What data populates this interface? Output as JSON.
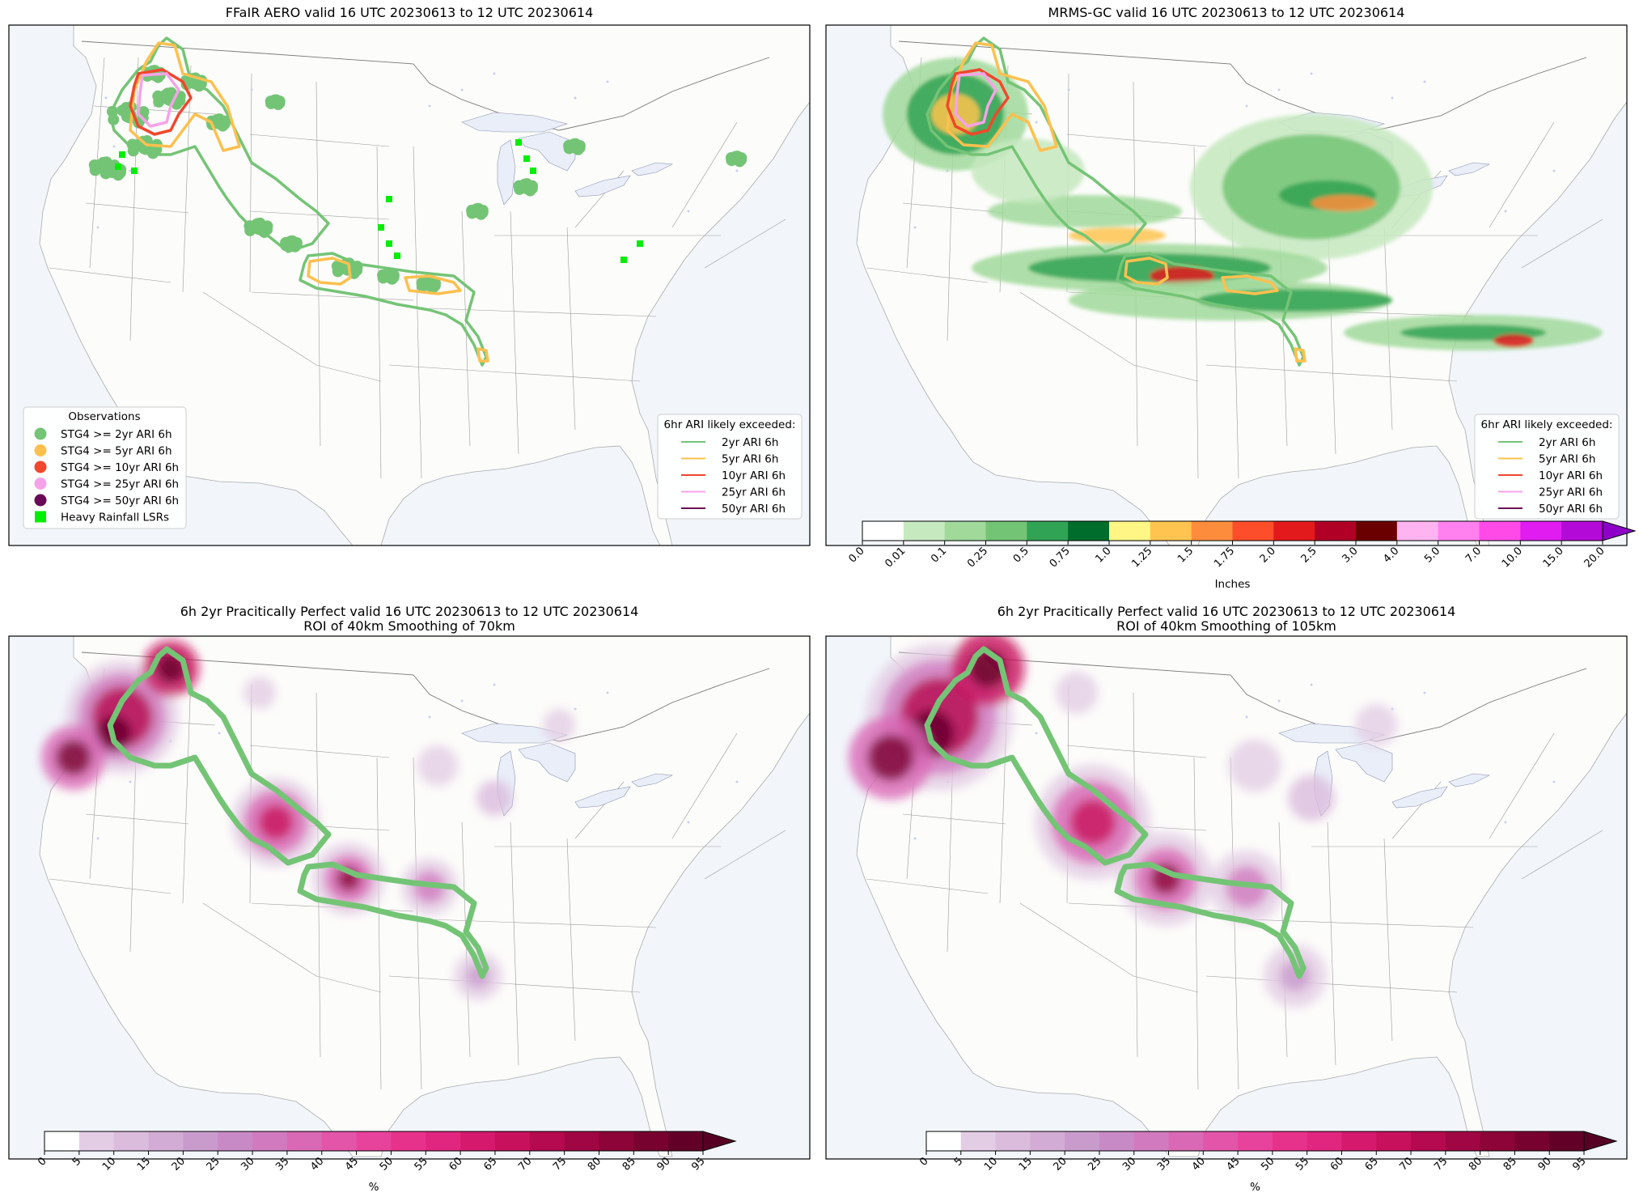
{
  "panels": [
    {
      "title_lines": [
        "FFaIR AERO valid 16 UTC 20230613 to 12 UTC 20230614"
      ]
    },
    {
      "title_lines": [
        "MRMS-GC valid 16 UTC 20230613 to 12 UTC 20230614"
      ]
    },
    {
      "title_lines": [
        "6h 2yr Pracitically Perfect valid 16 UTC 20230613 to 12 UTC 20230614",
        "ROI of 40km Smoothing of 70km"
      ]
    },
    {
      "title_lines": [
        "6h 2yr Pracitically Perfect valid 16 UTC 20230613 to 12 UTC 20230614",
        "ROI of 40km Smoothing of 105km"
      ]
    }
  ],
  "ari_legend": {
    "title": "6hr ARI likely exceeded:",
    "entries": [
      {
        "label": "2yr ARI 6h",
        "color": "#74c476"
      },
      {
        "label": "5yr ARI 6h",
        "color": "#fdc04e"
      },
      {
        "label": "10yr ARI 6h",
        "color": "#f1472c"
      },
      {
        "label": "25yr ARI 6h",
        "color": "#f5a3e8"
      },
      {
        "label": "50yr ARI 6h",
        "color": "#6a0a56"
      }
    ]
  },
  "obs_legend": {
    "title": "Observations",
    "entries": [
      {
        "label": "STG4 >= 2yr ARI 6h",
        "color": "#74c476",
        "marker": "circle"
      },
      {
        "label": "STG4 >= 5yr ARI 6h",
        "color": "#fdc04e",
        "marker": "circle"
      },
      {
        "label": "STG4 >= 10yr ARI 6h",
        "color": "#f1472c",
        "marker": "circle"
      },
      {
        "label": "STG4 >= 25yr ARI 6h",
        "color": "#f5a3e8",
        "marker": "circle"
      },
      {
        "label": "STG4 >= 50yr ARI 6h",
        "color": "#6a0a56",
        "marker": "circle"
      },
      {
        "label": "Heavy Rainfall LSRs",
        "color": "#00ee00",
        "marker": "square"
      }
    ]
  },
  "precip_colorbar": {
    "label": "Inches",
    "ticks": [
      "0.0",
      "0.01",
      "0.1",
      "0.25",
      "0.5",
      "0.75",
      "1.0",
      "1.25",
      "1.5",
      "1.75",
      "2.0",
      "2.5",
      "3.0",
      "4.0",
      "5.0",
      "7.0",
      "10.0",
      "15.0",
      "20.0"
    ],
    "colors": [
      "#ffffff",
      "#c7e9c0",
      "#a1d99b",
      "#74c476",
      "#31a354",
      "#006d2c",
      "#fff685",
      "#fec44f",
      "#fd8d3c",
      "#fc4e2a",
      "#e31a1c",
      "#b10026",
      "#6b0000",
      "#ffb3f0",
      "#ff80ee",
      "#ff4ae8",
      "#e01cf0",
      "#b40ad8"
    ],
    "extend_color": "#8c00c8"
  },
  "prob_colorbar": {
    "label": "%",
    "ticks": [
      "0",
      "5",
      "10",
      "15",
      "20",
      "25",
      "30",
      "35",
      "40",
      "45",
      "50",
      "55",
      "60",
      "65",
      "70",
      "75",
      "80",
      "85",
      "90",
      "95"
    ],
    "colors": [
      "#ffffff",
      "#e3cde5",
      "#dbbcdd",
      "#d2acd5",
      "#c99bcd",
      "#c88ac7",
      "#d17abf",
      "#d968b5",
      "#e255a9",
      "#e8439c",
      "#e7328c",
      "#e0267e",
      "#d51a6d",
      "#c8115d",
      "#b50a4f",
      "#a00643",
      "#8c0438",
      "#78022f",
      "#630028"
    ],
    "extend_color": "#560024"
  },
  "map_style": {
    "land": "#fcfcfa",
    "ocean": "#f2f6fb",
    "lakes": "#e9eef8",
    "borders": "#9a9a9a"
  }
}
